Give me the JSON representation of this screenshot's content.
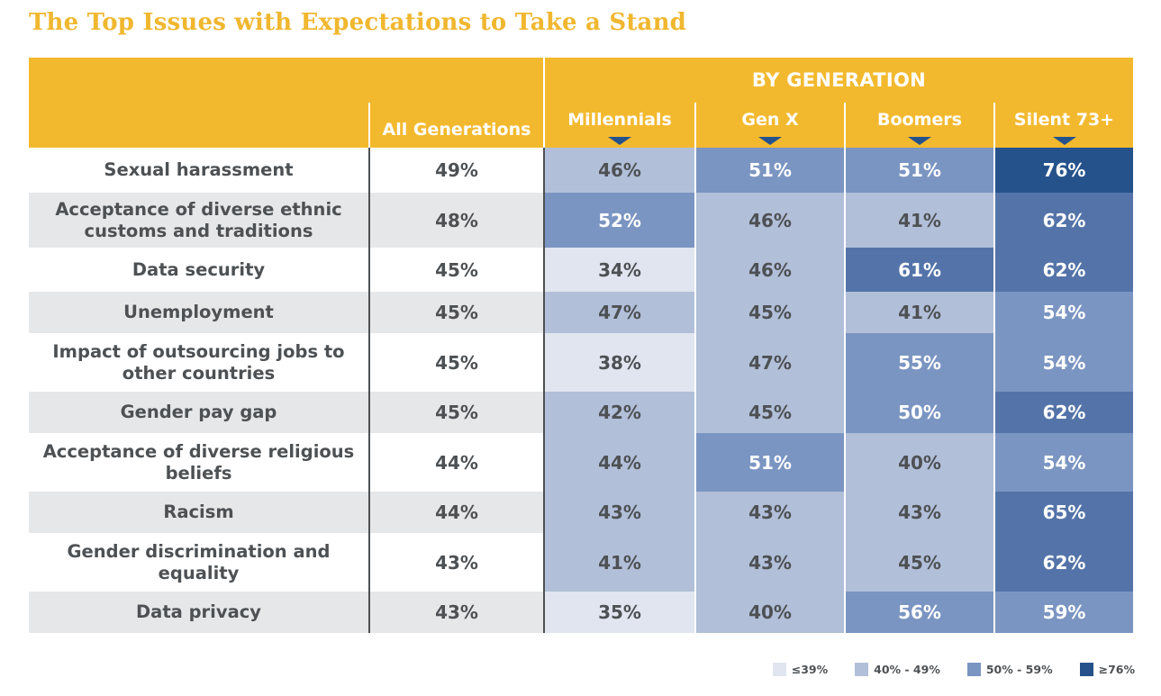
{
  "title": "The Top Issues with Expectations to Take a Stand",
  "colors": {
    "header": "#f3b92e",
    "title": "#f0b72f",
    "text_dark": "#4d5154",
    "bin_le39": "#e1e5ef",
    "bin_40_49": "#b2bfd9",
    "bin_50_59": "#7b95c2",
    "bin_60_75": "#5474a9",
    "bin_ge76": "#25528b"
  },
  "header": {
    "by_generation": "BY GENERATION",
    "all_generations": "All Generations"
  },
  "legend": [
    {
      "label": "≤39%",
      "color": "#e1e5ef"
    },
    {
      "label": "40% - 49%",
      "color": "#b2bfd9"
    },
    {
      "label": "50% - 59%",
      "color": "#7b95c2"
    },
    {
      "label": "≥76%",
      "color": "#25528b"
    }
  ],
  "chart_data": {
    "type": "table",
    "title": "The Top Issues with Expectations to Take a Stand",
    "columns": [
      "All Generations",
      "Millennials",
      "Gen X",
      "Boomers",
      "Silent 73+"
    ],
    "rows": [
      {
        "issue": "Sexual harassment",
        "all": "49%",
        "values": [
          46,
          51,
          51,
          76
        ]
      },
      {
        "issue": "Acceptance of diverse ethnic customs and traditions",
        "all": "48%",
        "values": [
          52,
          46,
          41,
          62
        ]
      },
      {
        "issue": "Data security",
        "all": "45%",
        "values": [
          34,
          46,
          61,
          62
        ]
      },
      {
        "issue": "Unemployment",
        "all": "45%",
        "values": [
          47,
          45,
          41,
          54
        ]
      },
      {
        "issue": "Impact of outsourcing jobs to other countries",
        "all": "45%",
        "values": [
          38,
          47,
          55,
          54
        ]
      },
      {
        "issue": "Gender pay gap",
        "all": "45%",
        "values": [
          42,
          45,
          50,
          62
        ]
      },
      {
        "issue": "Acceptance of diverse religious beliefs",
        "all": "44%",
        "values": [
          44,
          51,
          40,
          54
        ]
      },
      {
        "issue": "Racism",
        "all": "44%",
        "values": [
          43,
          43,
          43,
          65
        ]
      },
      {
        "issue": "Gender discrimination and equality",
        "all": "43%",
        "values": [
          41,
          43,
          45,
          62
        ]
      },
      {
        "issue": "Data privacy",
        "all": "43%",
        "values": [
          35,
          40,
          56,
          59
        ]
      }
    ]
  }
}
